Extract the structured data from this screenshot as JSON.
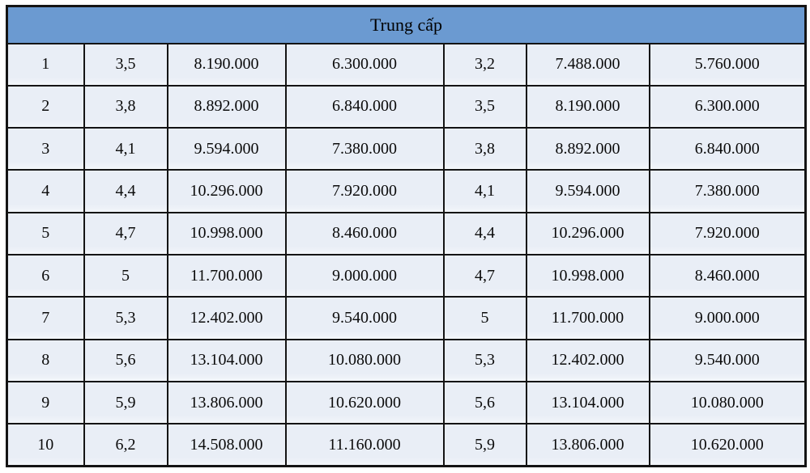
{
  "table": {
    "title": "Trung cấp",
    "columns_count": 7,
    "rows": [
      [
        "1",
        "3,5",
        "8.190.000",
        "6.300.000",
        "3,2",
        "7.488.000",
        "5.760.000"
      ],
      [
        "2",
        "3,8",
        "8.892.000",
        "6.840.000",
        "3,5",
        "8.190.000",
        "6.300.000"
      ],
      [
        "3",
        "4,1",
        "9.594.000",
        "7.380.000",
        "3,8",
        "8.892.000",
        "6.840.000"
      ],
      [
        "4",
        "4,4",
        "10.296.000",
        "7.920.000",
        "4,1",
        "9.594.000",
        "7.380.000"
      ],
      [
        "5",
        "4,7",
        "10.998.000",
        "8.460.000",
        "4,4",
        "10.296.000",
        "7.920.000"
      ],
      [
        "6",
        "5",
        "11.700.000",
        "9.000.000",
        "4,7",
        "10.998.000",
        "8.460.000"
      ],
      [
        "7",
        "5,3",
        "12.402.000",
        "9.540.000",
        "5",
        "11.700.000",
        "9.000.000"
      ],
      [
        "8",
        "5,6",
        "13.104.000",
        "10.080.000",
        "5,3",
        "12.402.000",
        "9.540.000"
      ],
      [
        "9",
        "5,9",
        "13.806.000",
        "10.620.000",
        "5,6",
        "13.104.000",
        "10.080.000"
      ],
      [
        "10",
        "6,2",
        "14.508.000",
        "11.160.000",
        "5,9",
        "13.806.000",
        "10.620.000"
      ]
    ],
    "colors": {
      "header_bg": "#6b9ad1",
      "cell_bg": "#e9eef6",
      "border": "#141414",
      "text": "#000000"
    }
  }
}
